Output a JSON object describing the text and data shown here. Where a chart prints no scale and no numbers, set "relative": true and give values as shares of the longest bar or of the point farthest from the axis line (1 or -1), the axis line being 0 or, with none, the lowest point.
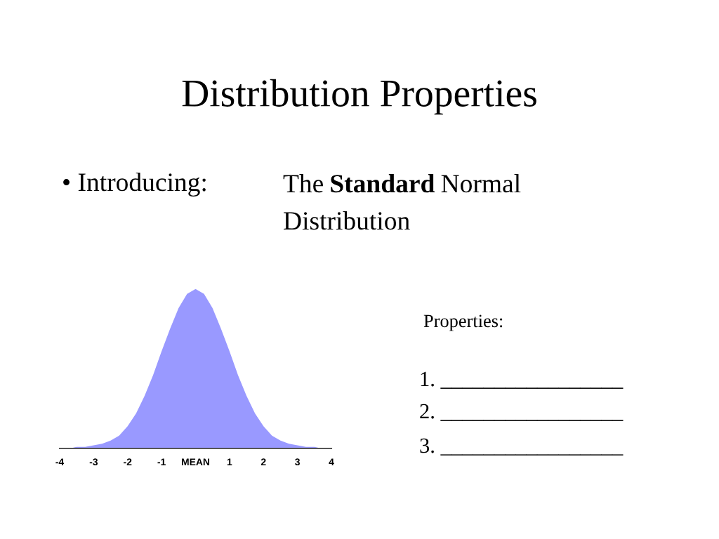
{
  "chart_data": {
    "type": "area",
    "title": "Distribution Properties",
    "relative": true,
    "color": "#9999ff",
    "x": [
      -3.6,
      -3.5,
      -3.25,
      -3,
      -2.75,
      -2.5,
      -2.25,
      -2,
      -1.75,
      -1.5,
      -1.25,
      -1,
      -0.75,
      -0.5,
      -0.25,
      0,
      0.25,
      0.5,
      0.75,
      1,
      1.25,
      1.5,
      1.75,
      2,
      2.25,
      2.5,
      2.75,
      3,
      3.25,
      3.5,
      3.6
    ],
    "values": [
      0.005,
      0.01,
      0.01,
      0.02,
      0.03,
      0.05,
      0.08,
      0.14,
      0.22,
      0.33,
      0.46,
      0.61,
      0.75,
      0.88,
      0.97,
      1,
      0.97,
      0.88,
      0.75,
      0.61,
      0.46,
      0.33,
      0.22,
      0.14,
      0.08,
      0.05,
      0.03,
      0.02,
      0.01,
      0.01,
      0.005
    ],
    "xlim": [
      -4,
      4
    ],
    "xticks": [
      -4,
      -3,
      -2,
      -1,
      {
        "value": 0,
        "label": "MEAN"
      },
      1,
      2,
      3,
      4
    ],
    "tick_labels": "x",
    "grid": false,
    "legend": false,
    "annotations": [
      "• Introducing:",
      "The",
      "Standard",
      "Normal",
      "Distribution",
      "Properties:",
      "1. _________________",
      "2. _________________",
      "3. _________________"
    ]
  }
}
